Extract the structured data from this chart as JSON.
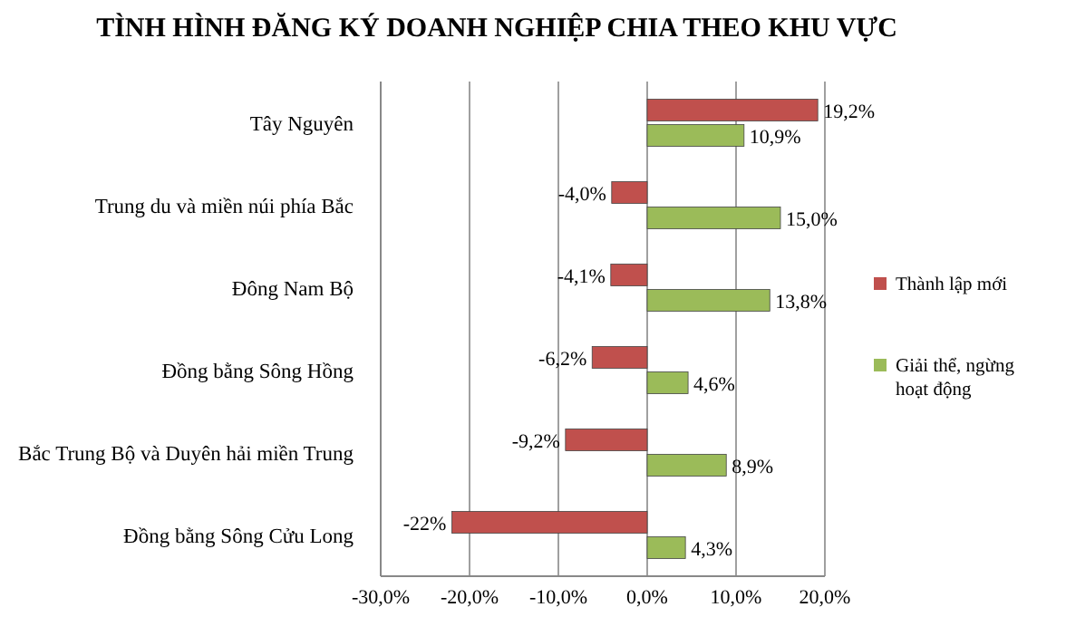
{
  "chart_data": {
    "type": "bar",
    "orientation": "horizontal",
    "title": "TÌNH HÌNH ĐĂNG KÝ DOANH NGHIỆP CHIA THEO KHU VỰC",
    "categories": [
      "Tây Nguyên",
      "Trung du và miền núi phía Bắc",
      "Đông Nam Bộ",
      "Đồng bằng Sông Hồng",
      "Bắc Trung Bộ và Duyên hải miền Trung",
      "Đồng bằng Sông Cửu Long"
    ],
    "series": [
      {
        "name": "Thành lập mới",
        "color": "#c0504d",
        "values": [
          19.2,
          -4.0,
          -4.1,
          -6.2,
          -9.2,
          -22
        ],
        "value_labels": [
          "19,2%",
          "-4,0%",
          "-4,1%",
          "-6,2%",
          "-9,2%",
          "-22%"
        ]
      },
      {
        "name": "Giải thể, ngừng hoạt động",
        "color": "#9bbb59",
        "values": [
          10.9,
          15.0,
          13.8,
          4.6,
          8.9,
          4.3
        ],
        "value_labels": [
          "10,9%",
          "15,0%",
          "13,8%",
          "4,6%",
          "8,9%",
          "4,3%"
        ]
      }
    ],
    "xlim": [
      -30,
      20
    ],
    "xticks": [
      {
        "value": -30,
        "label": "-30,0%"
      },
      {
        "value": -20,
        "label": "-20,0%"
      },
      {
        "value": -10,
        "label": "-10,0%"
      },
      {
        "value": 0,
        "label": "0,0%"
      },
      {
        "value": 10,
        "label": "10,0%"
      },
      {
        "value": 20,
        "label": "20,0%"
      }
    ],
    "grid": "x",
    "legend": "right"
  }
}
